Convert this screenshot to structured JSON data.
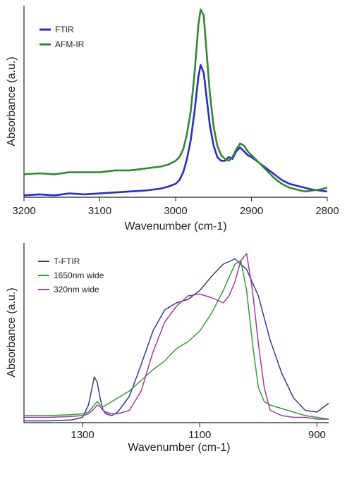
{
  "chart_data": [
    {
      "type": "line",
      "title": "",
      "xlabel": "Wavenumber (cm-1)",
      "ylabel": "Absorbance (a.u.)",
      "xlim": [
        3200,
        2800
      ],
      "ylim": [
        0,
        1
      ],
      "x_reversed": true,
      "x_ticks": [
        3200,
        3100,
        3000,
        2900,
        2800
      ],
      "y_ticks": [],
      "grid": false,
      "legend_placement": "top-left",
      "series": [
        {
          "name": "FTIR",
          "color": "#2a2ad6",
          "x": [
            3200,
            3180,
            3160,
            3140,
            3120,
            3100,
            3080,
            3060,
            3040,
            3020,
            3010,
            3000,
            2995,
            2990,
            2985,
            2980,
            2975,
            2970,
            2967,
            2963,
            2960,
            2955,
            2950,
            2945,
            2940,
            2935,
            2930,
            2925,
            2920,
            2915,
            2910,
            2905,
            2900,
            2890,
            2880,
            2870,
            2860,
            2850,
            2840,
            2830,
            2820,
            2810,
            2800
          ],
          "y": [
            0.01,
            0.015,
            0.01,
            0.02,
            0.015,
            0.02,
            0.025,
            0.03,
            0.035,
            0.045,
            0.055,
            0.07,
            0.09,
            0.13,
            0.2,
            0.3,
            0.45,
            0.63,
            0.69,
            0.65,
            0.55,
            0.38,
            0.27,
            0.21,
            0.19,
            0.19,
            0.21,
            0.2,
            0.24,
            0.26,
            0.24,
            0.22,
            0.21,
            0.18,
            0.15,
            0.12,
            0.09,
            0.07,
            0.06,
            0.05,
            0.04,
            0.035,
            0.03
          ]
        },
        {
          "name": "AFM-IR",
          "color": "#2e8b2e",
          "x": [
            3200,
            3180,
            3160,
            3140,
            3120,
            3100,
            3080,
            3060,
            3040,
            3020,
            3010,
            3000,
            2995,
            2990,
            2985,
            2980,
            2975,
            2970,
            2967,
            2963,
            2960,
            2955,
            2950,
            2945,
            2940,
            2935,
            2930,
            2925,
            2920,
            2915,
            2910,
            2905,
            2900,
            2890,
            2880,
            2870,
            2860,
            2850,
            2840,
            2830,
            2820,
            2810,
            2800
          ],
          "y": [
            0.12,
            0.125,
            0.12,
            0.13,
            0.13,
            0.13,
            0.14,
            0.14,
            0.15,
            0.16,
            0.17,
            0.19,
            0.21,
            0.25,
            0.33,
            0.45,
            0.65,
            0.9,
            0.98,
            0.95,
            0.8,
            0.55,
            0.37,
            0.27,
            0.22,
            0.2,
            0.19,
            0.21,
            0.25,
            0.28,
            0.27,
            0.24,
            0.22,
            0.18,
            0.14,
            0.1,
            0.07,
            0.05,
            0.04,
            0.03,
            0.035,
            0.04,
            0.05
          ]
        }
      ]
    },
    {
      "type": "line",
      "title": "",
      "xlabel": "Wavenumber (cm-1)",
      "ylabel": "Absorbance (a.u.)",
      "xlim": [
        1400,
        880
      ],
      "ylim": [
        0,
        1
      ],
      "x_reversed": true,
      "x_ticks": [
        1300,
        1100,
        900
      ],
      "y_ticks": [],
      "grid": false,
      "legend_placement": "top-left",
      "series": [
        {
          "name": "T-FTIR",
          "color": "#3a3a8c",
          "x": [
            1400,
            1360,
            1320,
            1300,
            1290,
            1280,
            1275,
            1270,
            1265,
            1260,
            1250,
            1240,
            1220,
            1200,
            1180,
            1160,
            1140,
            1120,
            1100,
            1080,
            1060,
            1040,
            1020,
            1000,
            980,
            960,
            940,
            920,
            900,
            880
          ],
          "y": [
            0.01,
            0.01,
            0.015,
            0.03,
            0.1,
            0.26,
            0.23,
            0.14,
            0.07,
            0.05,
            0.04,
            0.06,
            0.15,
            0.33,
            0.52,
            0.64,
            0.68,
            0.7,
            0.75,
            0.83,
            0.9,
            0.93,
            0.87,
            0.72,
            0.47,
            0.28,
            0.14,
            0.07,
            0.06,
            0.11
          ]
        },
        {
          "name": "1650nm wide",
          "color": "#2ea02e",
          "x": [
            1400,
            1360,
            1320,
            1300,
            1290,
            1280,
            1275,
            1270,
            1265,
            1260,
            1250,
            1240,
            1220,
            1200,
            1180,
            1160,
            1140,
            1120,
            1100,
            1080,
            1060,
            1040,
            1030,
            1020,
            1010,
            1000,
            990,
            980,
            960,
            940,
            920,
            900,
            880
          ],
          "y": [
            0.04,
            0.04,
            0.045,
            0.05,
            0.06,
            0.1,
            0.12,
            0.1,
            0.09,
            0.1,
            0.12,
            0.14,
            0.18,
            0.24,
            0.3,
            0.35,
            0.42,
            0.46,
            0.52,
            0.62,
            0.75,
            0.9,
            0.92,
            0.75,
            0.45,
            0.2,
            0.12,
            0.1,
            0.08,
            0.06,
            0.04,
            0.03,
            0.02
          ]
        },
        {
          "name": "320nm wide",
          "color": "#a03a9e",
          "x": [
            1400,
            1360,
            1320,
            1300,
            1290,
            1280,
            1275,
            1270,
            1265,
            1260,
            1250,
            1240,
            1220,
            1200,
            1180,
            1160,
            1140,
            1120,
            1100,
            1080,
            1060,
            1050,
            1040,
            1030,
            1020,
            1010,
            1000,
            990,
            980,
            960,
            940,
            920,
            900,
            880
          ],
          "y": [
            0.03,
            0.03,
            0.035,
            0.04,
            0.05,
            0.08,
            0.1,
            0.09,
            0.07,
            0.06,
            0.05,
            0.05,
            0.07,
            0.18,
            0.4,
            0.57,
            0.66,
            0.72,
            0.73,
            0.71,
            0.68,
            0.72,
            0.8,
            0.92,
            0.96,
            0.75,
            0.45,
            0.2,
            0.07,
            0.04,
            0.03,
            0.03,
            0.02,
            0.02
          ]
        }
      ]
    }
  ]
}
